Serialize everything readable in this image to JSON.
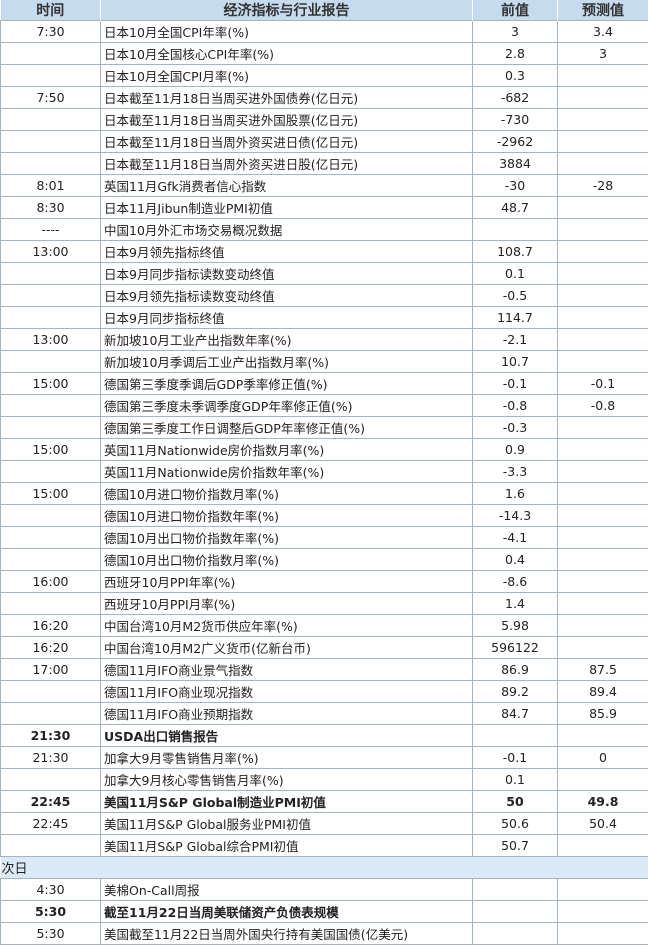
{
  "header": {
    "time": "时间",
    "indicator": "经济指标与行业报告",
    "previous": "前值",
    "forecast": "预测值"
  },
  "rows": [
    {
      "time": "7:30",
      "name": "日本10月全国CPI年率(%)",
      "prev": "3",
      "fcst": "3.4"
    },
    {
      "time": "",
      "name": "日本10月全国核心CPI年率(%)",
      "prev": "2.8",
      "fcst": "3"
    },
    {
      "time": "",
      "name": "日本10月全国CPI月率(%)",
      "prev": "0.3",
      "fcst": ""
    },
    {
      "time": "7:50",
      "name": "日本截至11月18日当周买进外国债券(亿日元)",
      "prev": "-682",
      "fcst": ""
    },
    {
      "time": "",
      "name": "日本截至11月18日当周买进外国股票(亿日元)",
      "prev": "-730",
      "fcst": ""
    },
    {
      "time": "",
      "name": "日本截至11月18日当周外资买进日债(亿日元)",
      "prev": "-2962",
      "fcst": ""
    },
    {
      "time": "",
      "name": "日本截至11月18日当周外资买进日股(亿日元)",
      "prev": "3884",
      "fcst": ""
    },
    {
      "time": "8:01",
      "name": "英国11月Gfk消费者信心指数",
      "prev": "-30",
      "fcst": "-28"
    },
    {
      "time": "8:30",
      "name": "日本11月Jibun制造业PMI初值",
      "prev": "48.7",
      "fcst": ""
    },
    {
      "time": "----",
      "name": "中国10月外汇市场交易概况数据",
      "prev": "",
      "fcst": ""
    },
    {
      "time": "13:00",
      "name": "日本9月领先指标终值",
      "prev": "108.7",
      "fcst": ""
    },
    {
      "time": "",
      "name": "日本9月同步指标读数变动终值",
      "prev": "0.1",
      "fcst": ""
    },
    {
      "time": "",
      "name": "日本9月领先指标读数变动终值",
      "prev": "-0.5",
      "fcst": ""
    },
    {
      "time": "",
      "name": "日本9月同步指标终值",
      "prev": "114.7",
      "fcst": ""
    },
    {
      "time": "13:00",
      "name": "新加坡10月工业产出指数年率(%)",
      "prev": "-2.1",
      "fcst": ""
    },
    {
      "time": "",
      "name": "新加坡10月季调后工业产出指数月率(%)",
      "prev": "10.7",
      "fcst": ""
    },
    {
      "time": "15:00",
      "name": "德国第三季度季调后GDP季率修正值(%)",
      "prev": "-0.1",
      "fcst": "-0.1"
    },
    {
      "time": "",
      "name": "德国第三季度未季调季度GDP年率修正值(%)",
      "prev": "-0.8",
      "fcst": "-0.8"
    },
    {
      "time": "",
      "name": "德国第三季度工作日调整后GDP年率修正值(%)",
      "prev": "-0.3",
      "fcst": ""
    },
    {
      "time": "15:00",
      "name": "英国11月Nationwide房价指数月率(%)",
      "prev": "0.9",
      "fcst": ""
    },
    {
      "time": "",
      "name": "英国11月Nationwide房价指数年率(%)",
      "prev": "-3.3",
      "fcst": ""
    },
    {
      "time": "15:00",
      "name": "德国10月进口物价指数月率(%)",
      "prev": "1.6",
      "fcst": ""
    },
    {
      "time": "",
      "name": "德国10月进口物价指数年率(%)",
      "prev": "-14.3",
      "fcst": ""
    },
    {
      "time": "",
      "name": "德国10月出口物价指数年率(%)",
      "prev": "-4.1",
      "fcst": ""
    },
    {
      "time": "",
      "name": "德国10月出口物价指数月率(%)",
      "prev": "0.4",
      "fcst": ""
    },
    {
      "time": "16:00",
      "name": "西班牙10月PPI年率(%)",
      "prev": "-8.6",
      "fcst": ""
    },
    {
      "time": "",
      "name": "西班牙10月PPI月率(%)",
      "prev": "1.4",
      "fcst": ""
    },
    {
      "time": "16:20",
      "name": "中国台湾10月M2货币供应年率(%)",
      "prev": "5.98",
      "fcst": ""
    },
    {
      "time": "16:20",
      "name": "中国台湾10月M2广义货币(亿新台币)",
      "prev": "596122",
      "fcst": ""
    },
    {
      "time": "17:00",
      "name": "德国11月IFO商业景气指数",
      "prev": "86.9",
      "fcst": "87.5"
    },
    {
      "time": "",
      "name": "德国11月IFO商业现况指数",
      "prev": "89.2",
      "fcst": "89.4"
    },
    {
      "time": "",
      "name": "德国11月IFO商业预期指数",
      "prev": "84.7",
      "fcst": "85.9"
    },
    {
      "time": "21:30",
      "name": "USDA出口销售报告",
      "prev": "",
      "fcst": "",
      "bold": true
    },
    {
      "time": "21:30",
      "name": "加拿大9月零售销售月率(%)",
      "prev": "-0.1",
      "fcst": "0"
    },
    {
      "time": "",
      "name": "加拿大9月核心零售销售月率(%)",
      "prev": "0.1",
      "fcst": ""
    },
    {
      "time": "22:45",
      "name": "美国11月S&P Global制造业PMI初值",
      "prev": "50",
      "fcst": "49.8",
      "bold": true
    },
    {
      "time": "22:45",
      "name": "美国11月S&P Global服务业PMI初值",
      "prev": "50.6",
      "fcst": "50.4"
    },
    {
      "time": "",
      "name": "美国11月S&P Global综合PMI初值",
      "prev": "50.7",
      "fcst": ""
    },
    {
      "section": "次日"
    },
    {
      "time": "4:30",
      "name": "美棉On-Call周报",
      "prev": "",
      "fcst": ""
    },
    {
      "time": "5:30",
      "name": "截至11月22日当周美联储资产负债表规模",
      "prev": "",
      "fcst": "",
      "bold": true
    },
    {
      "time": "5:30",
      "name": "美国截至11月22日当周外国央行持有美国国债(亿美元)",
      "prev": "",
      "fcst": ""
    }
  ]
}
